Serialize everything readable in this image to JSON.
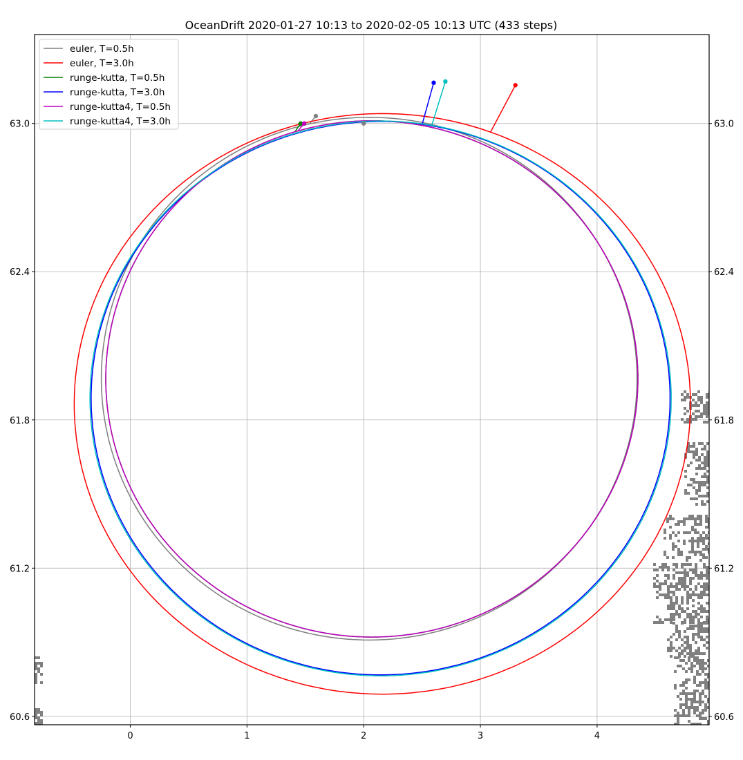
{
  "chart_data": {
    "type": "line",
    "title": "OceanDrift  2020-01-27 10:13 to 2020-02-05 10:13 UTC (433 steps)",
    "xlabel": "",
    "ylabel": "",
    "xlim": [
      -0.82,
      4.96
    ],
    "ylim": [
      60.566,
      63.36
    ],
    "x_ticks": [
      "0",
      "1",
      "2",
      "3",
      "4"
    ],
    "y_ticks": [
      "60.6",
      "61.2",
      "61.8",
      "62.4",
      "63.0"
    ],
    "grid": true,
    "legend_position": "top-left",
    "land_color": "#808080",
    "series": [
      {
        "name": "euler, T=0.5h",
        "color": "#808080",
        "start": [
          2.0,
          63.0
        ],
        "end": [
          1.59,
          63.03
        ],
        "center": [
          2.047,
          61.967
        ],
        "rx": 2.295,
        "ry": 1.058,
        "sweep_deg": 375
      },
      {
        "name": "euler, T=3.0h",
        "color": "#ff0000",
        "start": [
          2.0,
          63.0
        ],
        "end": [
          3.3,
          63.155
        ],
        "center": [
          2.16,
          61.865
        ],
        "rx": 2.64,
        "ry": 1.175,
        "sweep_deg": 414
      },
      {
        "name": "runge-kutta, T=0.5h",
        "color": "#008000",
        "start": [
          2.0,
          63.0
        ],
        "end": [
          1.46,
          63.0
        ],
        "center": [
          2.07,
          61.966
        ],
        "rx": 2.28,
        "ry": 1.045,
        "sweep_deg": 365
      },
      {
        "name": "runge-kutta, T=3.0h",
        "color": "#0000ff",
        "start": [
          2.0,
          63.0
        ],
        "end": [
          2.6,
          63.165
        ],
        "center": [
          2.145,
          61.888
        ],
        "rx": 2.48,
        "ry": 1.12,
        "sweep_deg": 405
      },
      {
        "name": "runge-kutta4, T=0.5h",
        "color": "#bf00bf",
        "start": [
          2.0,
          63.0
        ],
        "end": [
          1.49,
          63.0
        ],
        "center": [
          2.07,
          61.966
        ],
        "rx": 2.28,
        "ry": 1.045,
        "sweep_deg": 365
      },
      {
        "name": "runge-kutta4, T=3.0h",
        "color": "#00bfbf",
        "start": [
          2.0,
          63.0
        ],
        "end": [
          2.7,
          63.17
        ],
        "center": [
          2.145,
          61.887
        ],
        "rx": 2.49,
        "ry": 1.123,
        "sweep_deg": 407
      }
    ]
  }
}
